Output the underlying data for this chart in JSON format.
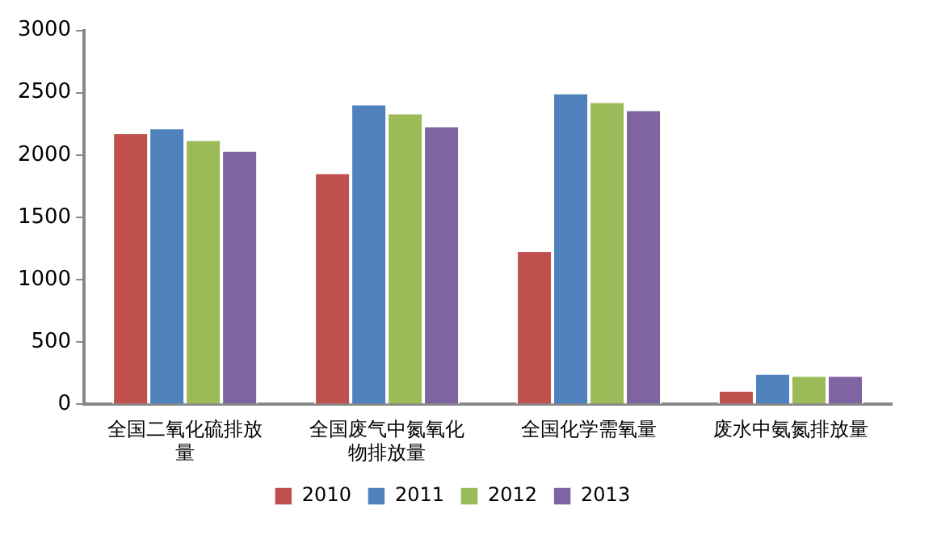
{
  "chart_data": {
    "type": "bar",
    "categories": [
      "全国二氧化硫排放量",
      "全国废气中氮氧化物排放量",
      "全国化学需氧量",
      "废水中氨氮排放量"
    ],
    "series": [
      {
        "name": "2010",
        "color": "#c0504d",
        "values": [
          2180,
          1860,
          1235,
          115
        ]
      },
      {
        "name": "2011",
        "color": "#4f81bd",
        "values": [
          2220,
          2410,
          2500,
          250
        ]
      },
      {
        "name": "2012",
        "color": "#9bbb59",
        "values": [
          2125,
          2340,
          2430,
          235
        ]
      },
      {
        "name": "2013",
        "color": "#8064a2",
        "values": [
          2040,
          2235,
          2365,
          235
        ]
      }
    ],
    "ylim": [
      0,
      3000
    ],
    "yticks": [
      0,
      500,
      1000,
      1500,
      2000,
      2500,
      3000
    ],
    "grid": false,
    "legend": "bottom"
  }
}
